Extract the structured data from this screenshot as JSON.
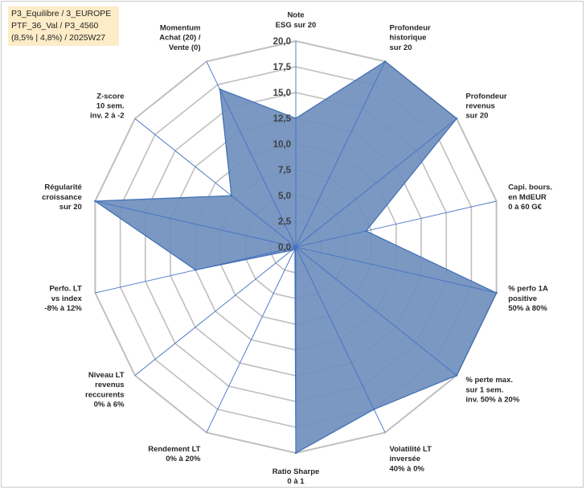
{
  "info_box": {
    "line1": "P3_Equilibre / 3_EUROPE",
    "line2": "PTF_36_Val / P3_4560",
    "line3": "(8,5% | 4,8%) / 2025W27"
  },
  "colors": {
    "fill": "#6f8fbd",
    "stroke": "#3f6fb5",
    "grid": "#bfbfbf",
    "spoke": "#4472c4",
    "info_bg": "#fdecc8"
  },
  "chart_data": {
    "type": "radar",
    "rmax": 20,
    "ticks": [
      "0,0",
      "2,5",
      "5,0",
      "7,5",
      "10,0",
      "12,5",
      "15,0",
      "17,5",
      "20,0"
    ],
    "tick_values": [
      0,
      2.5,
      5,
      7.5,
      10,
      12.5,
      15,
      17.5,
      20
    ],
    "axes": [
      {
        "label": [
          "Note",
          "ESG sur 20"
        ],
        "value": 12.5
      },
      {
        "label": [
          "Profondeur",
          "historique",
          "sur 20"
        ],
        "value": 20
      },
      {
        "label": [
          "Profondeur",
          "revenus",
          "sur 20"
        ],
        "value": 20
      },
      {
        "label": [
          "Capi. bours.",
          "en MdEUR",
          "0 à 60 G€"
        ],
        "value": 7
      },
      {
        "label": [
          "% perfo 1A",
          "positive",
          "50% à 80%"
        ],
        "value": 20
      },
      {
        "label": [
          "% perte max.",
          "sur 1 sem.",
          "inv. 50% à 20%"
        ],
        "value": 20
      },
      {
        "label": [
          "Volatilité LT",
          "inversée",
          "40% à 0%"
        ],
        "value": 17.5
      },
      {
        "label": [
          "Ratio Sharpe",
          "0 à 1"
        ],
        "value": 20
      },
      {
        "label": [
          "Rendement LT",
          "0% à 20%"
        ],
        "value": 0.2
      },
      {
        "label": [
          "Niveau LT",
          "revenus",
          "reccurents",
          "0% à 6%"
        ],
        "value": 0.5
      },
      {
        "label": [
          "Perfo. LT",
          "vs index",
          "-8% à 12%"
        ],
        "value": 10
      },
      {
        "label": [
          "Régularité",
          "croissance",
          "sur 20"
        ],
        "value": 20
      },
      {
        "label": [
          "Z-score",
          "10 sem.",
          "inv. 2 à -2"
        ],
        "value": 8
      },
      {
        "label": [
          "Momentum",
          "Achat (20) /",
          "Vente (0)"
        ],
        "value": 17
      }
    ]
  }
}
